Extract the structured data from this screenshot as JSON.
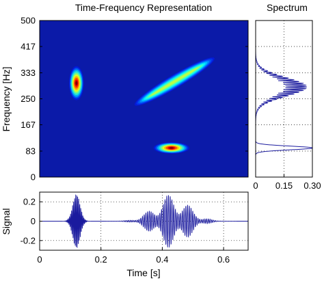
{
  "chart_data": [
    {
      "type": "heatmap",
      "title": "Time-Frequency Representation",
      "xlabel": "",
      "ylabel": "Frequency [Hz]",
      "xlim": [
        0,
        0.68
      ],
      "ylim": [
        0,
        500
      ],
      "y_ticks": [
        "0",
        "83",
        "167",
        "250",
        "333",
        "417",
        "500"
      ],
      "y_tick_values": [
        0,
        83,
        167,
        250,
        333,
        417,
        500
      ],
      "colormap": "jet",
      "background_color": "#0b1aa8",
      "components": [
        {
          "kind": "atom",
          "t": 0.12,
          "f": 300,
          "t_spread": 0.012,
          "f_spread": 28,
          "amplitude": 1.0
        },
        {
          "kind": "chirp",
          "t_start": 0.31,
          "t_end": 0.57,
          "f_start": 230,
          "f_end": 380,
          "amplitude": 0.55
        },
        {
          "kind": "atom",
          "t": 0.43,
          "f": 93,
          "t_spread": 0.03,
          "f_spread": 9,
          "amplitude": 1.0
        }
      ]
    },
    {
      "type": "line",
      "title": "Spectrum",
      "xlabel": "",
      "ylabel": "",
      "orientation": "vertical",
      "xlim": [
        0,
        0.3
      ],
      "ylim": [
        0,
        500
      ],
      "x_ticks": [
        "0",
        "0.15",
        "0.30"
      ],
      "x_tick_values": [
        0,
        0.15,
        0.3
      ],
      "grid": true,
      "line_color": "#1a1a9e",
      "peaks": [
        {
          "f": 93,
          "value": 0.3,
          "width": 6
        },
        {
          "f": 288,
          "value": 0.27,
          "width": 30
        }
      ]
    },
    {
      "type": "line",
      "title": "",
      "xlabel": "Time [s]",
      "ylabel": "Signal",
      "xlim": [
        0,
        0.68
      ],
      "ylim": [
        -0.3,
        0.3
      ],
      "x_ticks": [
        "0",
        "0.2",
        "0.4",
        "0.6"
      ],
      "x_tick_values": [
        0,
        0.2,
        0.4,
        0.6
      ],
      "y_ticks": [
        "0.2",
        "0",
        "-0.2"
      ],
      "y_tick_values": [
        0.2,
        0,
        -0.2
      ],
      "grid": true,
      "line_color": "#1a1a9e",
      "bursts": [
        {
          "t": 0.12,
          "f": 300,
          "t_spread": 0.012,
          "peak": 0.28
        },
        {
          "t": 0.43,
          "f": 93,
          "t_spread": 0.055,
          "peak": 0.28
        }
      ]
    }
  ]
}
